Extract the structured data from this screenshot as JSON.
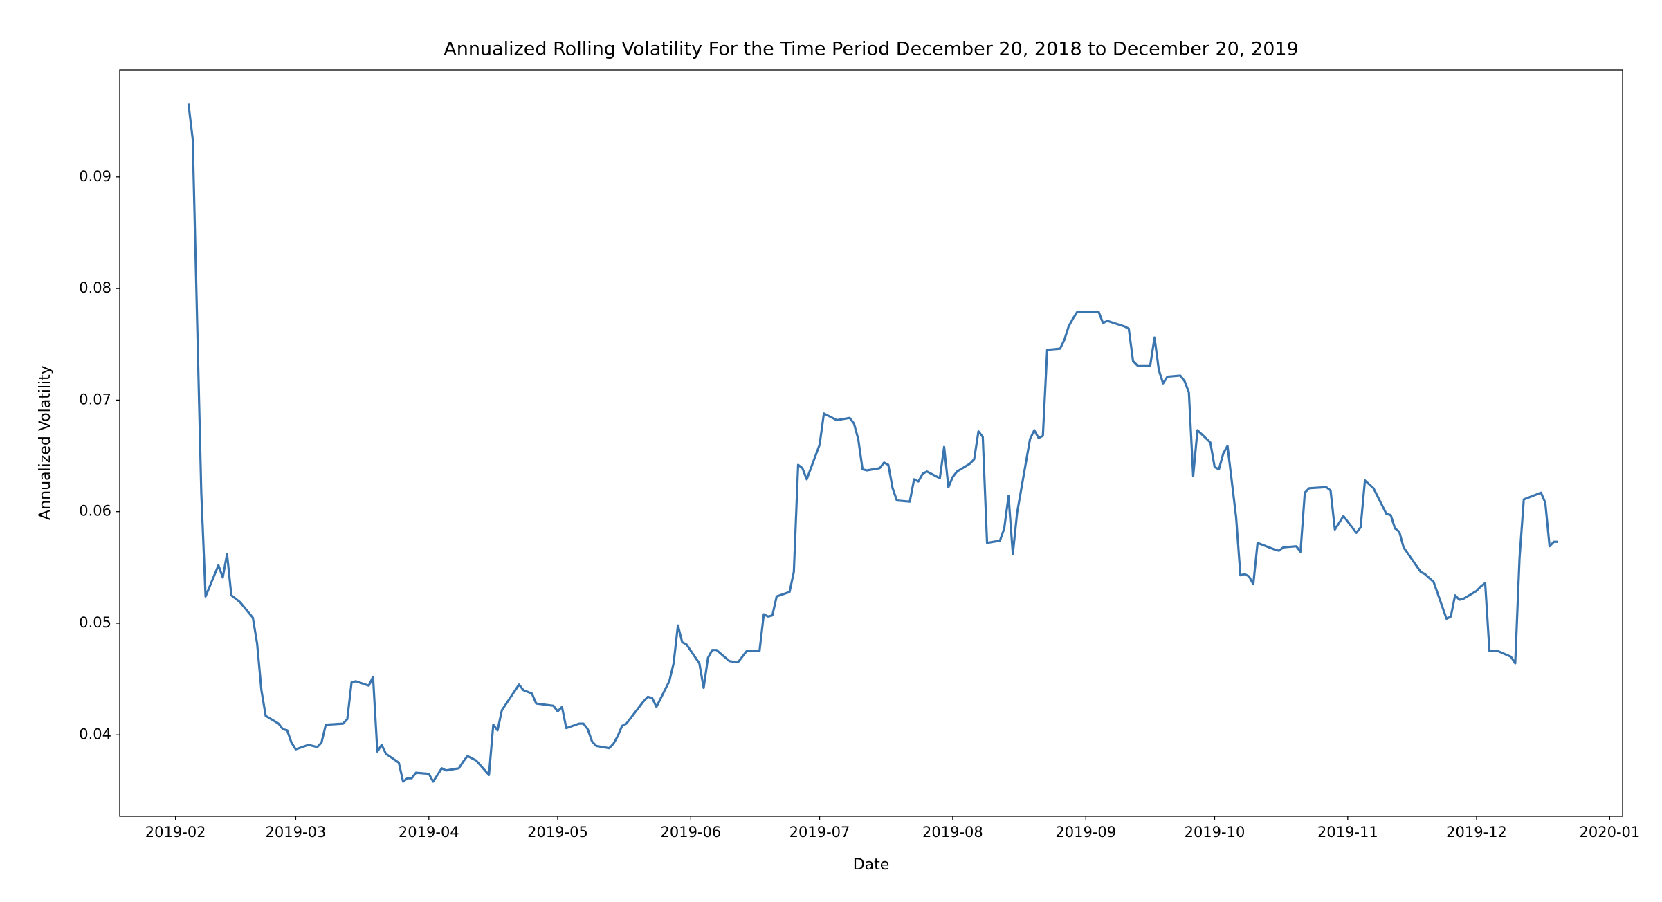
{
  "chart_data": {
    "type": "line",
    "title": "Annualized Rolling Volatility For the Time Period December 20, 2018 to December 20, 2019",
    "xlabel": "Date",
    "ylabel": "Annualized Volatility",
    "color": "#3a75af",
    "x": [
      "2019-02-04",
      "2019-02-05",
      "2019-02-07",
      "2019-02-08",
      "2019-02-11",
      "2019-02-12",
      "2019-02-13",
      "2019-02-14",
      "2019-02-16",
      "2019-02-19",
      "2019-02-20",
      "2019-02-21",
      "2019-02-22",
      "2019-02-25",
      "2019-02-26",
      "2019-02-27",
      "2019-02-28",
      "2019-03-01",
      "2019-03-04",
      "2019-03-06",
      "2019-03-07",
      "2019-03-08",
      "2019-03-12",
      "2019-03-13",
      "2019-03-14",
      "2019-03-15",
      "2019-03-18",
      "2019-03-19",
      "2019-03-20",
      "2019-03-21",
      "2019-03-22",
      "2019-03-25",
      "2019-03-26",
      "2019-03-27",
      "2019-03-28",
      "2019-03-29",
      "2019-04-01",
      "2019-04-02",
      "2019-04-03",
      "2019-04-04",
      "2019-04-05",
      "2019-04-08",
      "2019-04-09",
      "2019-04-10",
      "2019-04-12",
      "2019-04-15",
      "2019-04-16",
      "2019-04-17",
      "2019-04-18",
      "2019-04-22",
      "2019-04-23",
      "2019-04-25",
      "2019-04-26",
      "2019-04-30",
      "2019-05-01",
      "2019-05-02",
      "2019-05-03",
      "2019-05-06",
      "2019-05-07",
      "2019-05-08",
      "2019-05-09",
      "2019-05-10",
      "2019-05-13",
      "2019-05-14",
      "2019-05-15",
      "2019-05-16",
      "2019-05-17",
      "2019-05-21",
      "2019-05-22",
      "2019-05-23",
      "2019-05-24",
      "2019-05-27",
      "2019-05-28",
      "2019-05-29",
      "2019-05-30",
      "2019-05-31",
      "2019-06-03",
      "2019-06-04",
      "2019-06-05",
      "2019-06-06",
      "2019-06-07",
      "2019-06-10",
      "2019-06-12",
      "2019-06-14",
      "2019-06-17",
      "2019-06-18",
      "2019-06-19",
      "2019-06-20",
      "2019-06-21",
      "2019-06-24",
      "2019-06-25",
      "2019-06-26",
      "2019-06-27",
      "2019-06-28",
      "2019-07-01",
      "2019-07-02",
      "2019-07-03",
      "2019-07-05",
      "2019-07-08",
      "2019-07-09",
      "2019-07-10",
      "2019-07-11",
      "2019-07-12",
      "2019-07-15",
      "2019-07-16",
      "2019-07-17",
      "2019-07-18",
      "2019-07-19",
      "2019-07-22",
      "2019-07-23",
      "2019-07-24",
      "2019-07-25",
      "2019-07-26",
      "2019-07-29",
      "2019-07-30",
      "2019-07-31",
      "2019-08-01",
      "2019-08-02",
      "2019-08-05",
      "2019-08-06",
      "2019-08-07",
      "2019-08-08",
      "2019-08-09",
      "2019-08-12",
      "2019-08-13",
      "2019-08-14",
      "2019-08-15",
      "2019-08-16",
      "2019-08-19",
      "2019-08-20",
      "2019-08-21",
      "2019-08-22",
      "2019-08-23",
      "2019-08-26",
      "2019-08-27",
      "2019-08-28",
      "2019-08-29",
      "2019-08-30",
      "2019-09-04",
      "2019-09-05",
      "2019-09-06",
      "2019-09-10",
      "2019-09-11",
      "2019-09-12",
      "2019-09-13",
      "2019-09-16",
      "2019-09-17",
      "2019-09-18",
      "2019-09-19",
      "2019-09-20",
      "2019-09-23",
      "2019-09-24",
      "2019-09-25",
      "2019-09-26",
      "2019-09-27",
      "2019-09-30",
      "2019-10-01",
      "2019-10-02",
      "2019-10-03",
      "2019-10-04",
      "2019-10-06",
      "2019-10-07",
      "2019-10-08",
      "2019-10-09",
      "2019-10-10",
      "2019-10-11",
      "2019-10-15",
      "2019-10-16",
      "2019-10-17",
      "2019-10-20",
      "2019-10-21",
      "2019-10-22",
      "2019-10-23",
      "2019-10-27",
      "2019-10-28",
      "2019-10-29",
      "2019-10-31",
      "2019-11-03",
      "2019-11-04",
      "2019-11-05",
      "2019-11-07",
      "2019-11-10",
      "2019-11-11",
      "2019-11-12",
      "2019-11-13",
      "2019-11-14",
      "2019-11-18",
      "2019-11-19",
      "2019-11-21",
      "2019-11-24",
      "2019-11-25",
      "2019-11-26",
      "2019-11-27",
      "2019-11-28",
      "2019-12-01",
      "2019-12-02",
      "2019-12-03",
      "2019-12-04",
      "2019-12-06",
      "2019-12-09",
      "2019-12-10",
      "2019-12-11",
      "2019-12-12",
      "2019-12-16",
      "2019-12-17",
      "2019-12-18",
      "2019-12-19",
      "2019-12-20"
    ],
    "values": [
      0.0966,
      0.0934,
      0.0617,
      0.0524,
      0.0552,
      0.0541,
      0.0562,
      0.0525,
      0.0519,
      0.0505,
      0.0482,
      0.044,
      0.0417,
      0.041,
      0.0405,
      0.0404,
      0.0393,
      0.0387,
      0.0391,
      0.0389,
      0.0393,
      0.0409,
      0.041,
      0.0414,
      0.0447,
      0.0448,
      0.0444,
      0.0452,
      0.0385,
      0.0391,
      0.0383,
      0.0375,
      0.0358,
      0.0361,
      0.0361,
      0.0366,
      0.0365,
      0.0358,
      0.0364,
      0.037,
      0.0368,
      0.037,
      0.0376,
      0.0381,
      0.0377,
      0.0364,
      0.0409,
      0.0404,
      0.0422,
      0.0445,
      0.044,
      0.0437,
      0.0428,
      0.0426,
      0.0421,
      0.0425,
      0.0406,
      0.041,
      0.041,
      0.0405,
      0.0394,
      0.039,
      0.0388,
      0.0392,
      0.0399,
      0.0408,
      0.041,
      0.043,
      0.0434,
      0.0433,
      0.0425,
      0.0448,
      0.0464,
      0.0498,
      0.0483,
      0.0481,
      0.0464,
      0.0442,
      0.0469,
      0.0476,
      0.0476,
      0.0466,
      0.0465,
      0.0475,
      0.0475,
      0.0508,
      0.0506,
      0.0507,
      0.0524,
      0.0528,
      0.0546,
      0.0642,
      0.0639,
      0.0629,
      0.066,
      0.0688,
      0.0686,
      0.0682,
      0.0684,
      0.0679,
      0.0665,
      0.0638,
      0.0637,
      0.0639,
      0.0644,
      0.0642,
      0.0621,
      0.061,
      0.0609,
      0.0629,
      0.0627,
      0.0634,
      0.0636,
      0.063,
      0.0658,
      0.0622,
      0.0631,
      0.0636,
      0.0643,
      0.0647,
      0.0672,
      0.0667,
      0.0572,
      0.0574,
      0.0585,
      0.0614,
      0.0562,
      0.0599,
      0.0665,
      0.0673,
      0.0666,
      0.0668,
      0.0745,
      0.0746,
      0.0754,
      0.0766,
      0.0773,
      0.0779,
      0.0779,
      0.0769,
      0.0771,
      0.0766,
      0.0764,
      0.0735,
      0.0731,
      0.0731,
      0.0756,
      0.0727,
      0.0715,
      0.0721,
      0.0722,
      0.0717,
      0.0707,
      0.0632,
      0.0673,
      0.0662,
      0.064,
      0.0638,
      0.0652,
      0.0659,
      0.0595,
      0.0543,
      0.0544,
      0.0542,
      0.0535,
      0.0572,
      0.0566,
      0.0565,
      0.0568,
      0.0569,
      0.0564,
      0.0617,
      0.0621,
      0.0622,
      0.0619,
      0.0584,
      0.0596,
      0.0581,
      0.0586,
      0.0628,
      0.0621,
      0.0598,
      0.0597,
      0.0585,
      0.0582,
      0.0568,
      0.0546,
      0.0544,
      0.0537,
      0.0504,
      0.0506,
      0.0525,
      0.0521,
      0.0522,
      0.0529,
      0.0533,
      0.0536,
      0.0475,
      0.0475,
      0.047,
      0.0464,
      0.0558,
      0.0611,
      0.0617,
      0.0608,
      0.0569,
      0.0573,
      0.0573
    ],
    "xlim": [
      "2019-01-19",
      "2020-01-04"
    ],
    "xticks": [
      {
        "value": "2019-02-01",
        "label": "2019-02"
      },
      {
        "value": "2019-03-01",
        "label": "2019-03"
      },
      {
        "value": "2019-04-01",
        "label": "2019-04"
      },
      {
        "value": "2019-05-01",
        "label": "2019-05"
      },
      {
        "value": "2019-06-01",
        "label": "2019-06"
      },
      {
        "value": "2019-07-01",
        "label": "2019-07"
      },
      {
        "value": "2019-08-01",
        "label": "2019-08"
      },
      {
        "value": "2019-09-01",
        "label": "2019-09"
      },
      {
        "value": "2019-10-01",
        "label": "2019-10"
      },
      {
        "value": "2019-11-01",
        "label": "2019-11"
      },
      {
        "value": "2019-12-01",
        "label": "2019-12"
      },
      {
        "value": "2020-01-01",
        "label": "2020-01"
      }
    ],
    "ylim": [
      0.0327,
      0.0996
    ],
    "yticks": [
      0.04,
      0.05,
      0.06,
      0.07,
      0.08,
      0.09
    ],
    "grid": false
  }
}
